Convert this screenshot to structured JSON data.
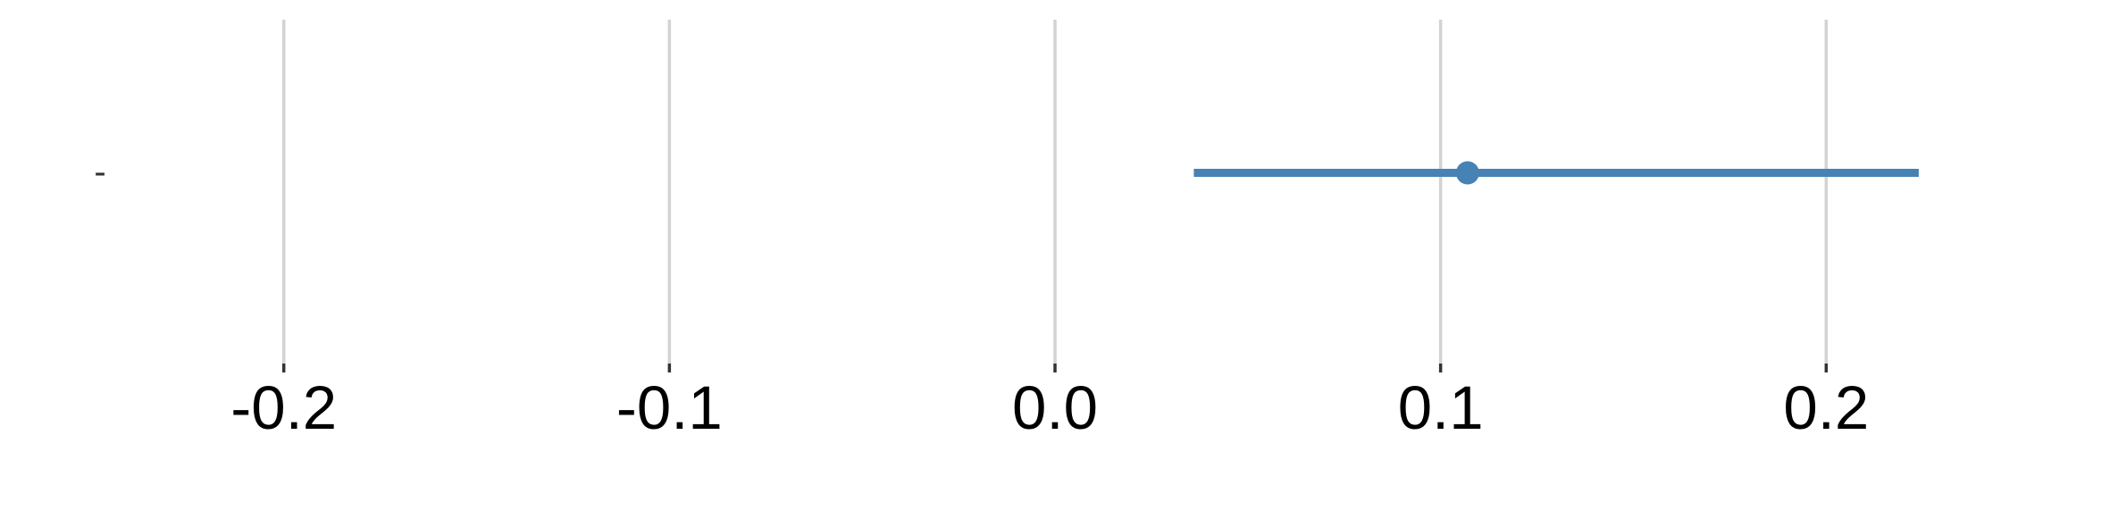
{
  "chart_data": {
    "type": "scatter",
    "subtype": "forest-plot",
    "title": "",
    "xlabel": "",
    "ylabel": "",
    "xlim": [
      -0.2736,
      0.2736
    ],
    "x_ticks": [
      -0.2,
      -0.1,
      0.0,
      0.1,
      0.2
    ],
    "x_tick_labels": [
      "-0.2",
      "-0.1",
      "0.0",
      "0.1",
      "0.2"
    ],
    "categories": [
      "-"
    ],
    "series": [
      {
        "estimate": [
          0.107
        ],
        "lower": [
          0.036
        ],
        "upper": [
          0.224
        ],
        "color": "#4682b4"
      }
    ],
    "grid": true,
    "legend": "none"
  }
}
